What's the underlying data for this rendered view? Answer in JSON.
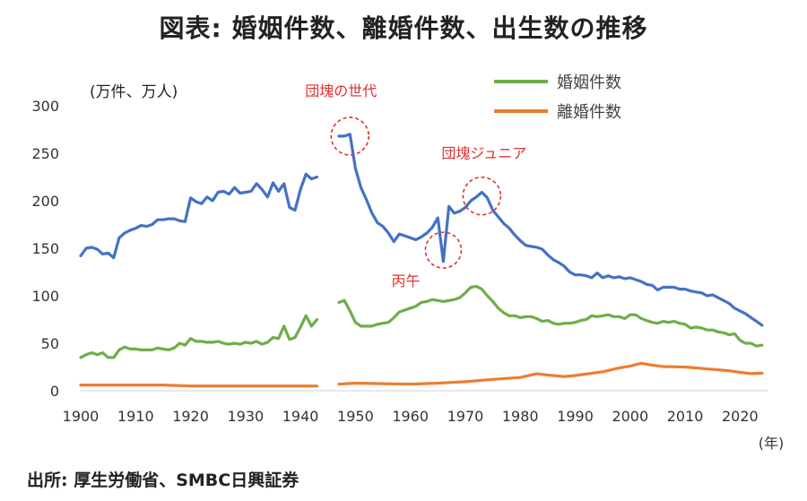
{
  "title": "図表: 婚姻件数、離婚件数、出生数の推移",
  "source": "出所: 厚生労働省、SMBC日興証券",
  "chart_data": {
    "type": "line",
    "title": "図表: 婚姻件数、離婚件数、出生数の推移",
    "ylabel": "(万件、万人)",
    "xlabel": "(年)",
    "ylim": [
      0,
      300
    ],
    "xlim": [
      1900,
      2025
    ],
    "y_ticks": [
      0,
      50,
      100,
      150,
      200,
      250,
      300
    ],
    "x_ticks": [
      1900,
      1910,
      1920,
      1930,
      1940,
      1950,
      1960,
      1970,
      1980,
      1990,
      2000,
      2010,
      2020
    ],
    "grid": false,
    "legend_placement": "top-right",
    "series": [
      {
        "name": "",
        "color": "#4472c4",
        "segments": [
          [
            [
              1900,
              142
            ],
            [
              1901,
              150
            ],
            [
              1902,
              151
            ],
            [
              1903,
              149
            ],
            [
              1904,
              144
            ],
            [
              1905,
              145
            ],
            [
              1906,
              140
            ],
            [
              1907,
              161
            ],
            [
              1908,
              166
            ],
            [
              1909,
              169
            ],
            [
              1910,
              171
            ],
            [
              1911,
              174
            ],
            [
              1912,
              173
            ],
            [
              1913,
              175
            ],
            [
              1914,
              180
            ],
            [
              1915,
              180
            ],
            [
              1916,
              181
            ],
            [
              1917,
              181
            ],
            [
              1918,
              179
            ],
            [
              1919,
              178
            ],
            [
              1920,
              203
            ],
            [
              1921,
              199
            ],
            [
              1922,
              197
            ],
            [
              1923,
              204
            ],
            [
              1924,
              200
            ],
            [
              1925,
              209
            ],
            [
              1926,
              210
            ],
            [
              1927,
              207
            ],
            [
              1928,
              214
            ],
            [
              1929,
              208
            ],
            [
              1930,
              209
            ],
            [
              1931,
              210
            ],
            [
              1932,
              218
            ],
            [
              1933,
              212
            ],
            [
              1934,
              204
            ],
            [
              1935,
              219
            ],
            [
              1936,
              210
            ],
            [
              1937,
              218
            ],
            [
              1938,
              193
            ],
            [
              1939,
              190
            ],
            [
              1940,
              212
            ],
            [
              1941,
              228
            ],
            [
              1942,
              223
            ],
            [
              1943,
              225
            ]
          ],
          [
            [
              1947,
              268
            ],
            [
              1948,
              268
            ],
            [
              1949,
              270
            ],
            [
              1950,
              234
            ],
            [
              1951,
              214
            ],
            [
              1952,
              201
            ],
            [
              1953,
              187
            ],
            [
              1954,
              177
            ],
            [
              1955,
              173
            ],
            [
              1956,
              166
            ],
            [
              1957,
              157
            ],
            [
              1958,
              165
            ],
            [
              1959,
              163
            ],
            [
              1960,
              161
            ],
            [
              1961,
              159
            ],
            [
              1962,
              162
            ],
            [
              1963,
              166
            ],
            [
              1964,
              172
            ],
            [
              1965,
              182
            ],
            [
              1966,
              136
            ],
            [
              1967,
              194
            ],
            [
              1968,
              187
            ],
            [
              1969,
              189
            ],
            [
              1970,
              193
            ],
            [
              1971,
              200
            ],
            [
              1972,
              204
            ],
            [
              1973,
              209
            ],
            [
              1974,
              203
            ],
            [
              1975,
              190
            ],
            [
              1976,
              183
            ],
            [
              1977,
              176
            ],
            [
              1978,
              171
            ],
            [
              1979,
              164
            ],
            [
              1980,
              158
            ],
            [
              1981,
              153
            ],
            [
              1982,
              152
            ],
            [
              1983,
              151
            ],
            [
              1984,
              149
            ],
            [
              1985,
              143
            ],
            [
              1986,
              138
            ],
            [
              1987,
              135
            ],
            [
              1988,
              131
            ],
            [
              1989,
              125
            ],
            [
              1990,
              122
            ],
            [
              1991,
              122
            ],
            [
              1992,
              121
            ],
            [
              1993,
              119
            ],
            [
              1994,
              124
            ],
            [
              1995,
              119
            ],
            [
              1996,
              121
            ],
            [
              1997,
              119
            ],
            [
              1998,
              120
            ],
            [
              1999,
              118
            ],
            [
              2000,
              119
            ],
            [
              2001,
              117
            ],
            [
              2002,
              115
            ],
            [
              2003,
              112
            ],
            [
              2004,
              111
            ],
            [
              2005,
              106
            ],
            [
              2006,
              109
            ],
            [
              2007,
              109
            ],
            [
              2008,
              109
            ],
            [
              2009,
              107
            ],
            [
              2010,
              107
            ],
            [
              2011,
              105
            ],
            [
              2012,
              104
            ],
            [
              2013,
              103
            ],
            [
              2014,
              100
            ],
            [
              2015,
              101
            ],
            [
              2016,
              98
            ],
            [
              2017,
              95
            ],
            [
              2018,
              92
            ],
            [
              2019,
              87
            ],
            [
              2020,
              84
            ],
            [
              2021,
              81
            ],
            [
              2022,
              77
            ],
            [
              2023,
              73
            ],
            [
              2024,
              69
            ]
          ]
        ]
      },
      {
        "name": "婚姻件数",
        "color": "#70ad47",
        "segments": [
          [
            [
              1900,
              35
            ],
            [
              1901,
              38
            ],
            [
              1902,
              40
            ],
            [
              1903,
              38
            ],
            [
              1904,
              40
            ],
            [
              1905,
              35
            ],
            [
              1906,
              35
            ],
            [
              1907,
              43
            ],
            [
              1908,
              46
            ],
            [
              1909,
              44
            ],
            [
              1910,
              44
            ],
            [
              1911,
              43
            ],
            [
              1912,
              43
            ],
            [
              1913,
              43
            ],
            [
              1914,
              45
            ],
            [
              1915,
              44
            ],
            [
              1916,
              43
            ],
            [
              1917,
              45
            ],
            [
              1918,
              50
            ],
            [
              1919,
              48
            ],
            [
              1920,
              55
            ],
            [
              1921,
              52
            ],
            [
              1922,
              52
            ],
            [
              1923,
              51
            ],
            [
              1924,
              51
            ],
            [
              1925,
              52
            ],
            [
              1926,
              50
            ],
            [
              1927,
              49
            ],
            [
              1928,
              50
            ],
            [
              1929,
              49
            ],
            [
              1930,
              51
            ],
            [
              1931,
              50
            ],
            [
              1932,
              52
            ],
            [
              1933,
              49
            ],
            [
              1934,
              51
            ],
            [
              1935,
              56
            ],
            [
              1936,
              55
            ],
            [
              1937,
              68
            ],
            [
              1938,
              54
            ],
            [
              1939,
              56
            ],
            [
              1940,
              67
            ],
            [
              1941,
              79
            ],
            [
              1942,
              68
            ],
            [
              1943,
              75
            ]
          ],
          [
            [
              1947,
              93
            ],
            [
              1948,
              95
            ],
            [
              1949,
              84
            ],
            [
              1950,
              72
            ],
            [
              1951,
              68
            ],
            [
              1952,
              68
            ],
            [
              1953,
              68
            ],
            [
              1954,
              70
            ],
            [
              1955,
              71
            ],
            [
              1956,
              72
            ],
            [
              1957,
              77
            ],
            [
              1958,
              83
            ],
            [
              1959,
              85
            ],
            [
              1960,
              87
            ],
            [
              1961,
              89
            ],
            [
              1962,
              93
            ],
            [
              1963,
              94
            ],
            [
              1964,
              96
            ],
            [
              1965,
              95
            ],
            [
              1966,
              94
            ],
            [
              1967,
              95
            ],
            [
              1968,
              96
            ],
            [
              1969,
              98
            ],
            [
              1970,
              103
            ],
            [
              1971,
              109
            ],
            [
              1972,
              110
            ],
            [
              1973,
              107
            ],
            [
              1974,
              100
            ],
            [
              1975,
              94
            ],
            [
              1976,
              87
            ],
            [
              1977,
              82
            ],
            [
              1978,
              79
            ],
            [
              1979,
              79
            ],
            [
              1980,
              77
            ],
            [
              1981,
              78
            ],
            [
              1982,
              78
            ],
            [
              1983,
              76
            ],
            [
              1984,
              73
            ],
            [
              1985,
              74
            ],
            [
              1986,
              71
            ],
            [
              1987,
              70
            ],
            [
              1988,
              71
            ],
            [
              1989,
              71
            ],
            [
              1990,
              72
            ],
            [
              1991,
              74
            ],
            [
              1992,
              75
            ],
            [
              1993,
              79
            ],
            [
              1994,
              78
            ],
            [
              1995,
              79
            ],
            [
              1996,
              80
            ],
            [
              1997,
              78
            ],
            [
              1998,
              78
            ],
            [
              1999,
              76
            ],
            [
              2000,
              80
            ],
            [
              2001,
              80
            ],
            [
              2002,
              76
            ],
            [
              2003,
              74
            ],
            [
              2004,
              72
            ],
            [
              2005,
              71
            ],
            [
              2006,
              73
            ],
            [
              2007,
              72
            ],
            [
              2008,
              73
            ],
            [
              2009,
              71
            ],
            [
              2010,
              70
            ],
            [
              2011,
              66
            ],
            [
              2012,
              67
            ],
            [
              2013,
              66
            ],
            [
              2014,
              64
            ],
            [
              2015,
              64
            ],
            [
              2016,
              62
            ],
            [
              2017,
              61
            ],
            [
              2018,
              59
            ],
            [
              2019,
              60
            ],
            [
              2020,
              53
            ],
            [
              2021,
              50
            ],
            [
              2022,
              50
            ],
            [
              2023,
              47
            ],
            [
              2024,
              48
            ]
          ]
        ]
      },
      {
        "name": "離婚件数",
        "color": "#ed7d31",
        "segments": [
          [
            [
              1900,
              6
            ],
            [
              1905,
              6
            ],
            [
              1910,
              6
            ],
            [
              1915,
              6
            ],
            [
              1920,
              5
            ],
            [
              1925,
              5
            ],
            [
              1930,
              5
            ],
            [
              1935,
              5
            ],
            [
              1940,
              5
            ],
            [
              1943,
              5
            ]
          ],
          [
            [
              1947,
              7
            ],
            [
              1950,
              8
            ],
            [
              1955,
              7.5
            ],
            [
              1960,
              7
            ],
            [
              1965,
              8
            ],
            [
              1970,
              9.5
            ],
            [
              1975,
              12
            ],
            [
              1980,
              14
            ],
            [
              1983,
              18
            ],
            [
              1985,
              16.5
            ],
            [
              1988,
              15
            ],
            [
              1990,
              16
            ],
            [
              1995,
              20
            ],
            [
              1998,
              24
            ],
            [
              2000,
              26
            ],
            [
              2002,
              29
            ],
            [
              2004,
              27
            ],
            [
              2006,
              25.5
            ],
            [
              2010,
              25
            ],
            [
              2015,
              22.5
            ],
            [
              2018,
              21
            ],
            [
              2020,
              19.3
            ],
            [
              2022,
              18
            ],
            [
              2024,
              18.5
            ]
          ]
        ]
      }
    ],
    "annotations": [
      {
        "text": "団塊の世代",
        "x": 1949,
        "y": 268
      },
      {
        "text": "団塊ジュニア",
        "x": 1973,
        "y": 205
      },
      {
        "text": "丙午",
        "x": 1966,
        "y": 148
      }
    ]
  }
}
